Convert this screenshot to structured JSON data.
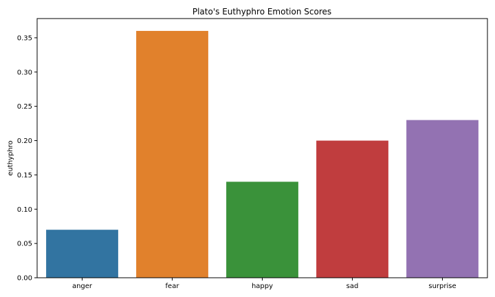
{
  "chart_data": {
    "type": "bar",
    "title": "Plato's Euthyphro Emotion Scores",
    "xlabel": "",
    "ylabel": "euthyphro",
    "categories": [
      "anger",
      "fear",
      "happy",
      "sad",
      "surprise"
    ],
    "values": [
      0.07,
      0.36,
      0.14,
      0.2,
      0.23
    ],
    "colors": [
      "#3274a1",
      "#e1812c",
      "#3a923a",
      "#c03d3e",
      "#9372b2"
    ],
    "ylim": [
      0,
      0.378
    ],
    "yticks": [
      0.0,
      0.05,
      0.1,
      0.15,
      0.2,
      0.25,
      0.3,
      0.35
    ],
    "ytick_labels": [
      "0.00",
      "0.05",
      "0.10",
      "0.15",
      "0.20",
      "0.25",
      "0.30",
      "0.35"
    ],
    "grid": false,
    "legend": "none"
  }
}
